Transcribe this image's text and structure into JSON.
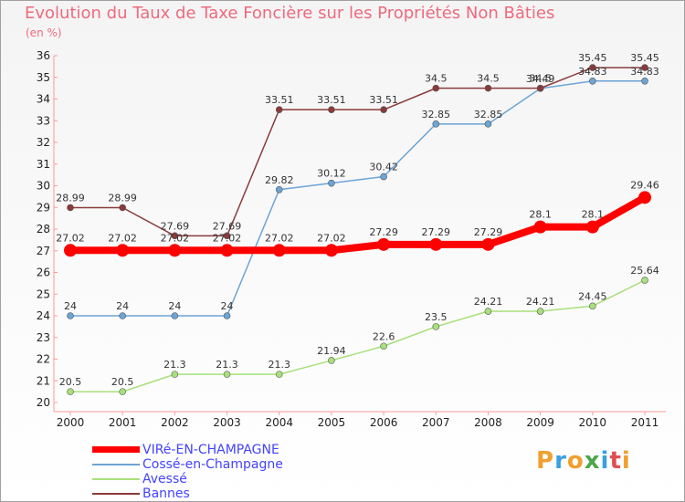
{
  "header": {
    "title": "Evolution du Taux de Taxe Foncière sur les Propriétés Non Bâties",
    "unit": "(en %)"
  },
  "logo": {
    "text": "Proxiti"
  },
  "chart_data": {
    "type": "line",
    "title": "Evolution du Taux de Taxe Foncière sur les Propriétés Non Bâties",
    "ylabel": "(en %)",
    "xlabel": "",
    "x": [
      "2000",
      "2001",
      "2002",
      "2003",
      "2004",
      "2005",
      "2006",
      "2007",
      "2008",
      "2009",
      "2010",
      "2011"
    ],
    "ylim": [
      20,
      36
    ],
    "yticks": [
      20,
      21,
      22,
      23,
      24,
      25,
      26,
      27,
      28,
      29,
      30,
      31,
      32,
      33,
      34,
      35,
      36
    ],
    "grid": false,
    "legend_position": "bottom-left",
    "series": [
      {
        "name": "VIRé-EN-CHAMPAGNE",
        "color": "#ff0000",
        "values": [
          27.02,
          27.02,
          27.02,
          27.02,
          27.02,
          27.02,
          27.29,
          27.29,
          27.29,
          28.1,
          28.1,
          29.46
        ],
        "labels": [
          "27.02",
          "27.02",
          "27.02",
          "27.02",
          "27.02",
          "27.02",
          "27.29",
          "27.29",
          "27.29",
          "28.1",
          "28.1",
          "29.46"
        ]
      },
      {
        "name": "Cossé-en-Champagne",
        "color": "#6ca4d4",
        "values": [
          24,
          24,
          24,
          24,
          29.82,
          30.12,
          30.42,
          32.85,
          32.85,
          34.49,
          34.83,
          34.83
        ],
        "labels": [
          "24",
          "24",
          "24",
          "24",
          "29.82",
          "30.12",
          "30.42",
          "32.85",
          "32.85",
          "34.49",
          "34.83",
          "34.83"
        ]
      },
      {
        "name": "Avessé",
        "color": "#a8e07c",
        "values": [
          20.5,
          20.5,
          21.3,
          21.3,
          21.3,
          21.94,
          22.6,
          23.5,
          24.21,
          24.21,
          24.45,
          25.64
        ],
        "labels": [
          "20.5",
          "20.5",
          "21.3",
          "21.3",
          "21.3",
          "21.94",
          "22.6",
          "23.5",
          "24.21",
          "24.21",
          "24.45",
          "25.64"
        ]
      },
      {
        "name": "Bannes",
        "color": "#8a3a3a",
        "values": [
          28.99,
          28.99,
          27.69,
          27.69,
          33.51,
          33.51,
          33.51,
          34.5,
          34.5,
          34.5,
          35.45,
          35.45
        ],
        "labels": [
          "28.99",
          "28.99",
          "27.69",
          "27.69",
          "33.51",
          "33.51",
          "33.51",
          "34.5",
          "34.5",
          "34.5",
          "35.45",
          "35.45"
        ]
      }
    ]
  },
  "legend": [
    {
      "label": "VIRé-EN-CHAMPAGNE",
      "color": "#ff0000"
    },
    {
      "label": "Cossé-en-Champagne",
      "color": "#6ca4d4"
    },
    {
      "label": "Avessé",
      "color": "#a8e07c"
    },
    {
      "label": "Bannes",
      "color": "#8a3a3a"
    }
  ]
}
